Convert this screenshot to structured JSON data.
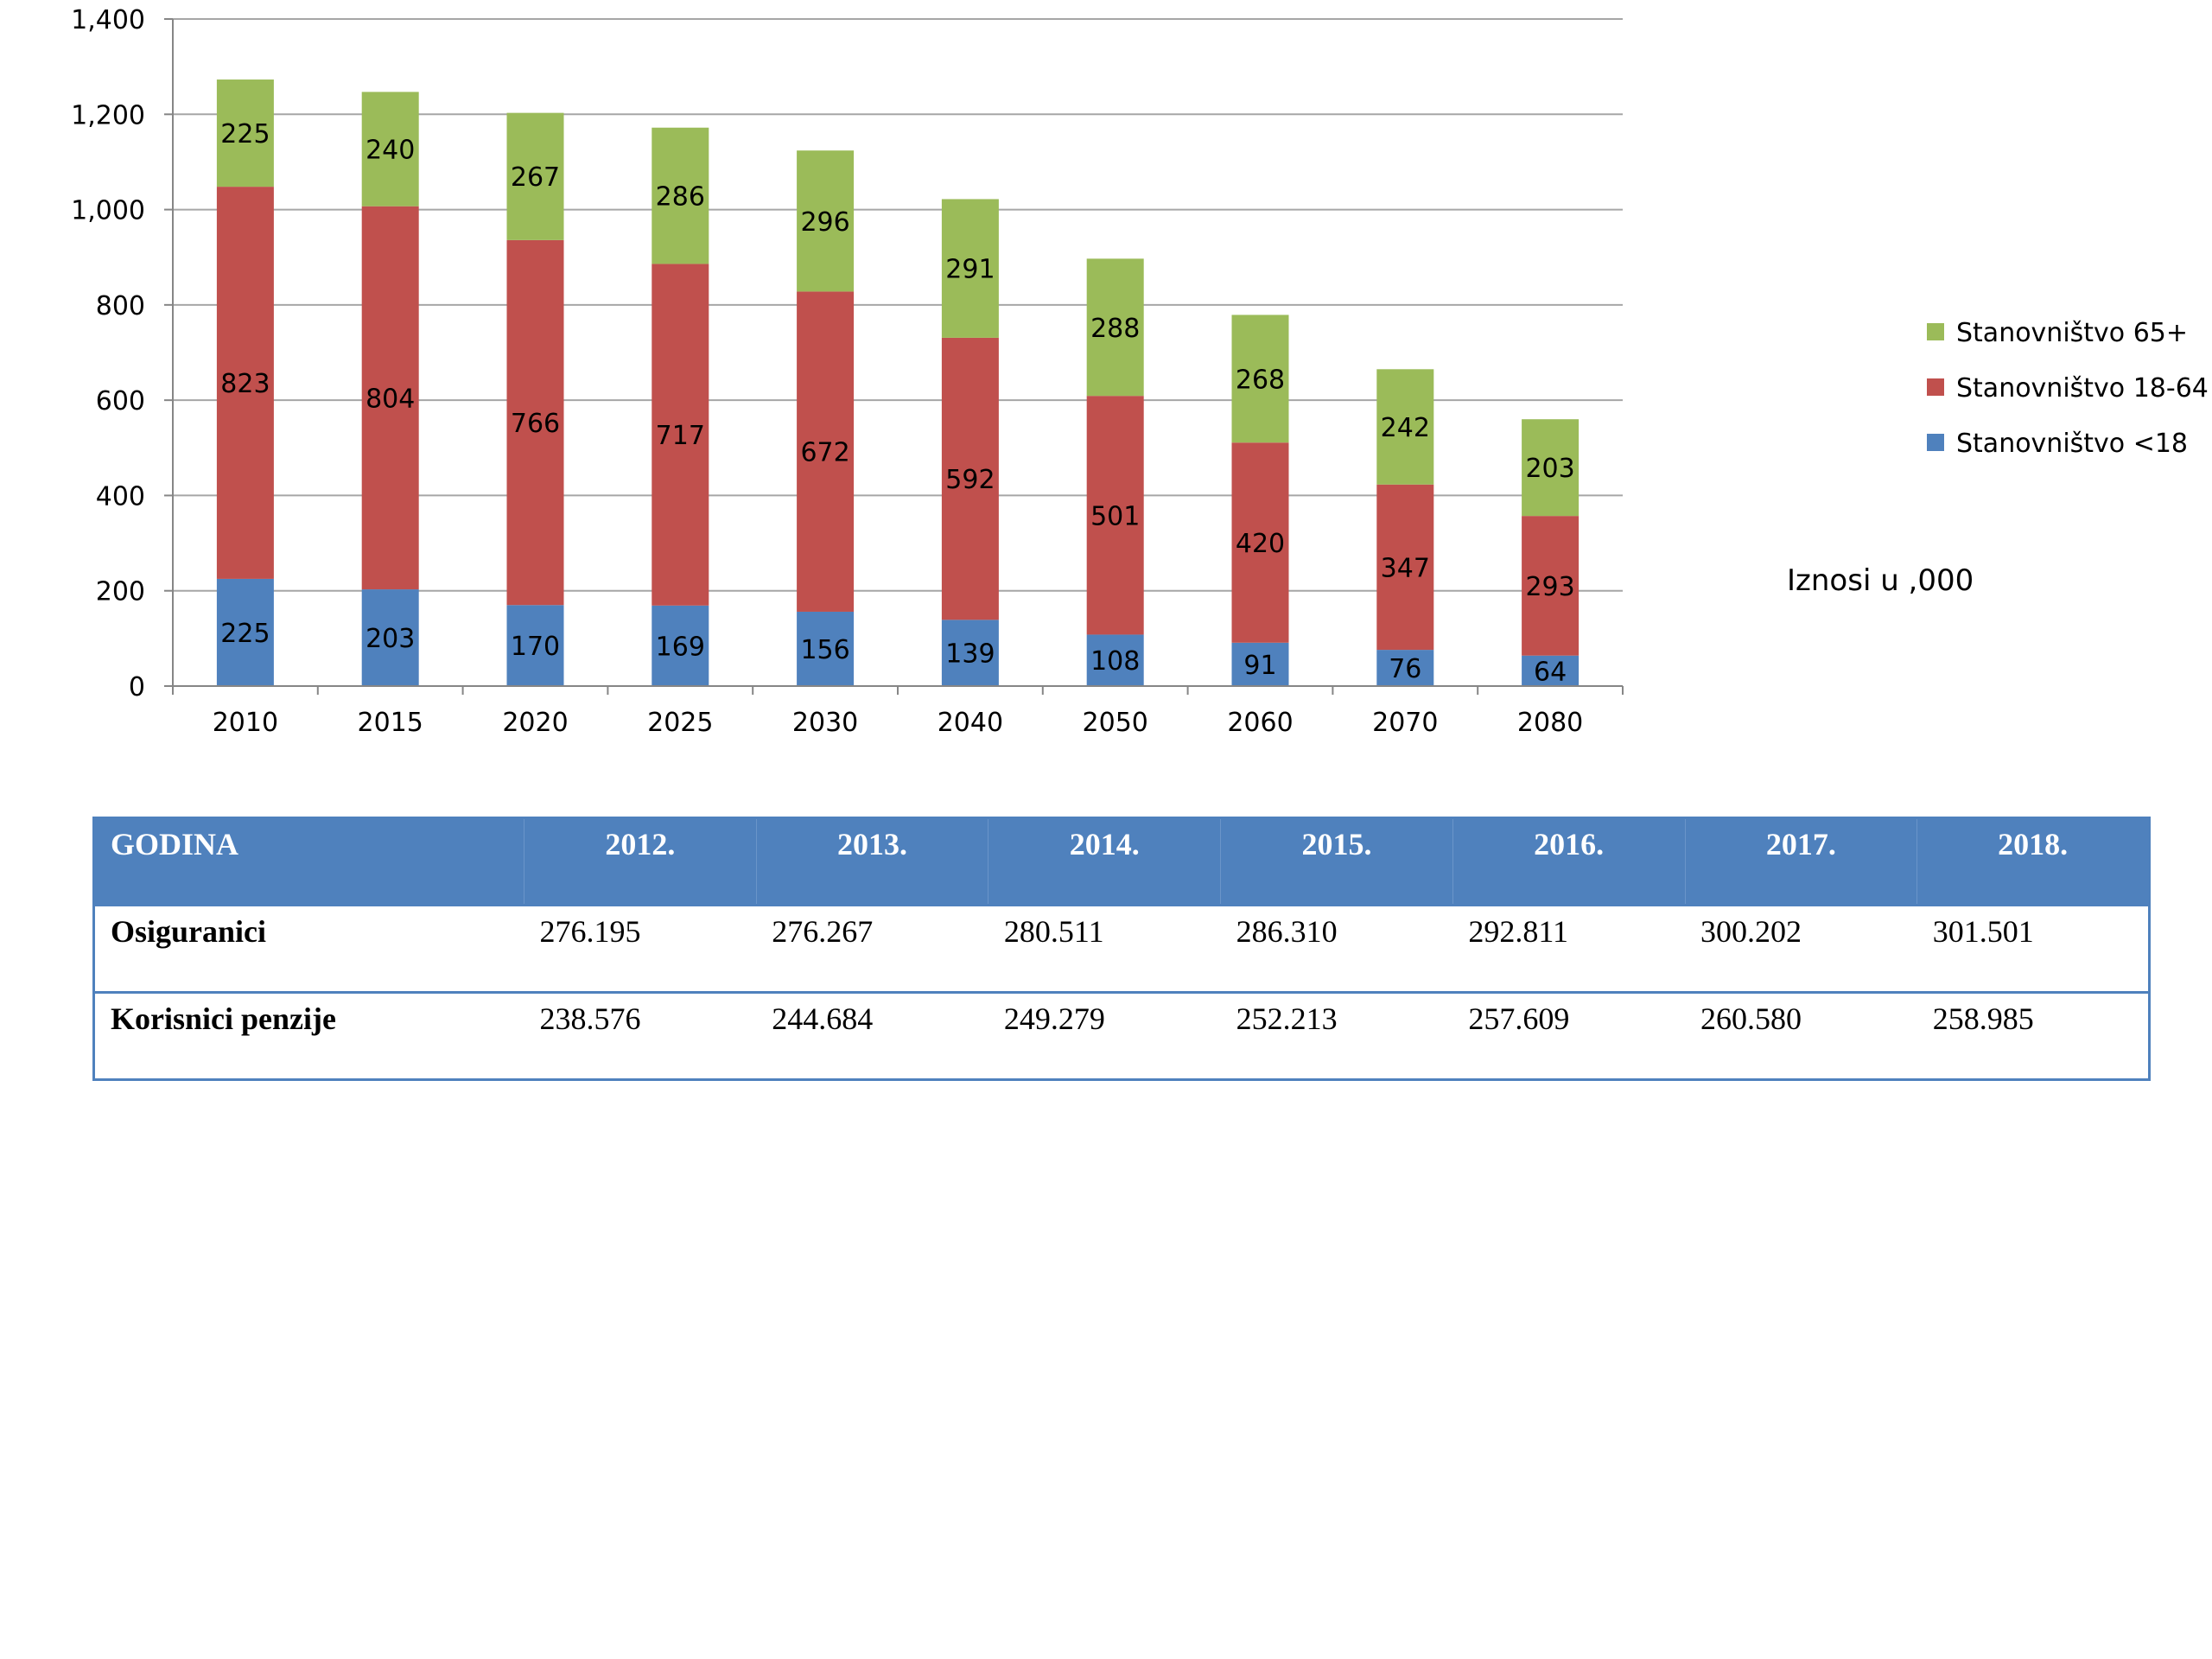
{
  "chart_data": {
    "type": "bar",
    "stacked": true,
    "categories": [
      "2010",
      "2015",
      "2020",
      "2025",
      "2030",
      "2040",
      "2050",
      "2060",
      "2070",
      "2080"
    ],
    "series": [
      {
        "name": "Stanovništvo <18",
        "color": "#4f81bd",
        "values": [
          225,
          203,
          170,
          169,
          156,
          139,
          108,
          91,
          76,
          64
        ]
      },
      {
        "name": "Stanovništvo 18-64",
        "color": "#c0504d",
        "values": [
          823,
          804,
          766,
          717,
          672,
          592,
          501,
          420,
          347,
          293
        ]
      },
      {
        "name": "Stanovništvo 65+",
        "color": "#9bbb59",
        "values": [
          225,
          240,
          267,
          286,
          296,
          291,
          288,
          268,
          242,
          203
        ]
      }
    ],
    "ylim": [
      0,
      1400
    ],
    "yticks": [
      "0",
      "200",
      "400",
      "600",
      "800",
      "1,000",
      "1,200",
      "1,400"
    ],
    "grid": true,
    "legend_position": "right",
    "note": "Iznosi u ,000"
  },
  "table": {
    "headers": [
      "GODINA",
      "2012.",
      "2013.",
      "2014.",
      "2015.",
      "2016.",
      "2017.",
      "2018."
    ],
    "rows": [
      [
        "Osiguranici",
        "276.195",
        "276.267",
        "280.511",
        "286.310",
        "292.811",
        "300.202",
        "301.501"
      ],
      [
        "Korisnici penzije",
        "238.576",
        "244.684",
        "249.279",
        "252.213",
        "257.609",
        "260.580",
        "258.985"
      ]
    ]
  }
}
